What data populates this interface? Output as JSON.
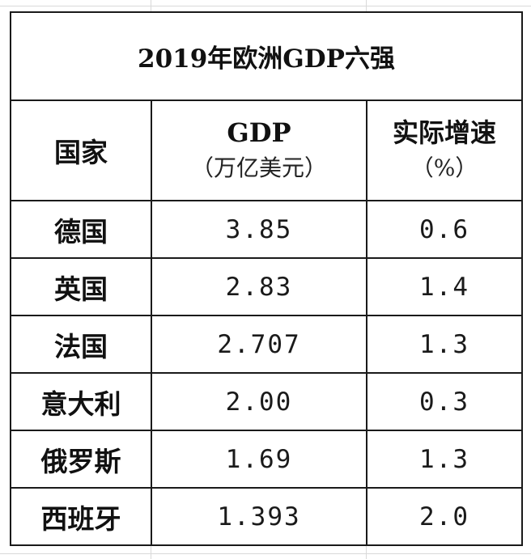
{
  "table": {
    "title": "2019年欧洲GDP六强",
    "headers": {
      "country": "国家",
      "gdp_line1": "GDP",
      "gdp_line2": "（万亿美元）",
      "growth_line1": "实际增速",
      "growth_line2": "（%）"
    },
    "rows": [
      {
        "country": "德国",
        "gdp": "3.85",
        "growth": "0.6"
      },
      {
        "country": "英国",
        "gdp": "2.83",
        "growth": "1.4"
      },
      {
        "country": "法国",
        "gdp": "2.707",
        "growth": "1.3"
      },
      {
        "country": "意大利",
        "gdp": "2.00",
        "growth": "0.3"
      },
      {
        "country": "俄罗斯",
        "gdp": "1.69",
        "growth": "1.3"
      },
      {
        "country": "西班牙",
        "gdp": "1.393",
        "growth": "2.0"
      }
    ]
  }
}
